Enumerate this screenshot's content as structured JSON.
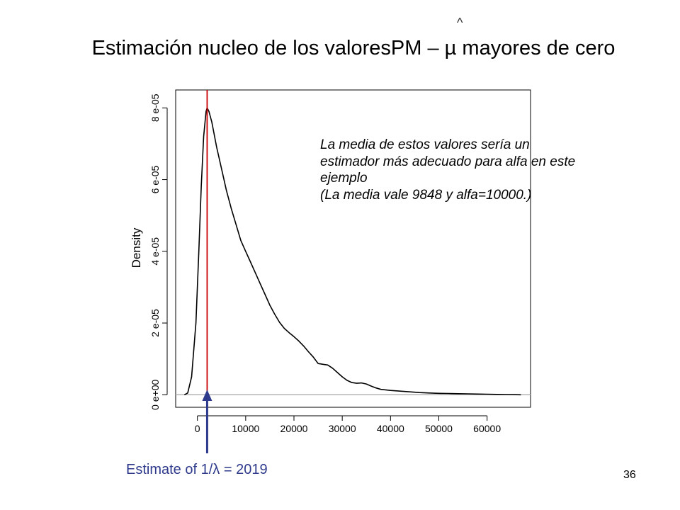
{
  "slide": {
    "hat_mark": "^",
    "title": "Estimación nucleo de los valoresPM – µ mayores de cero",
    "annotation_lines": [
      "La media de estos valores sería un",
      "estimador más adecuado para alfa en este",
      "ejemplo",
      "(La media vale 9848 y alfa=10000.)"
    ],
    "estimate_label": "Estimate of 1/λ = 2019",
    "page_number": "36"
  },
  "colors": {
    "curve": "#000000",
    "estimate_line": "#cc0000",
    "arrow": "#2e3a8c",
    "baseline": "#b3b3b3",
    "axis": "#000000"
  },
  "chart_data": {
    "type": "line",
    "title": "",
    "xlabel": "",
    "ylabel": "Density",
    "xlim": [
      -4500,
      69000
    ],
    "ylim": [
      -3.5e-06,
      8.5e-05
    ],
    "x_ticks": [
      0,
      10000,
      20000,
      30000,
      40000,
      50000,
      60000
    ],
    "x_tick_labels": [
      "0",
      "10000",
      "20000",
      "30000",
      "40000",
      "50000",
      "60000"
    ],
    "y_ticks": [
      0,
      2e-05,
      4e-05,
      6e-05,
      8e-05
    ],
    "y_tick_labels": [
      "0 e+00",
      "2 e-05",
      "4 e-05",
      "6 e-05",
      "8 e-05"
    ],
    "series": [
      {
        "x": [
          -2700,
          -2000,
          -1200,
          -300,
          300,
          800,
          1300,
          1800,
          2019,
          2400,
          3000,
          4000,
          5000,
          6000,
          7000,
          8000,
          9000,
          10000,
          11000,
          12000,
          13000,
          14000,
          15000,
          16000,
          17000,
          18000,
          19000,
          20000,
          21000,
          22000,
          23000,
          24000,
          25000,
          26000,
          27000,
          28000,
          29000,
          30000,
          31000,
          32000,
          33000,
          34000,
          35000,
          36000,
          37000,
          38000,
          40000,
          42000,
          44000,
          46000,
          48000,
          50000,
          52000,
          54000,
          56000,
          58000,
          60000,
          62000,
          64000,
          66000,
          67000
        ],
        "y": [
          0,
          5e-07,
          5e-06,
          2e-05,
          4e-05,
          5.8e-05,
          7.2e-05,
          7.9e-05,
          8e-05,
          7.9e-05,
          7.6e-05,
          6.9e-05,
          6.3e-05,
          5.7e-05,
          5.2e-05,
          4.75e-05,
          4.3e-05,
          4e-05,
          3.7e-05,
          3.4e-05,
          3.1e-05,
          2.8e-05,
          2.5e-05,
          2.25e-05,
          2.02e-05,
          1.85e-05,
          1.73e-05,
          1.62e-05,
          1.5e-05,
          1.36e-05,
          1.2e-05,
          1.05e-05,
          8.7e-06,
          8.5e-06,
          8.3e-06,
          7.4e-06,
          6.2e-06,
          5e-06,
          4e-06,
          3.4e-06,
          3.2e-06,
          3.3e-06,
          3e-06,
          2.4e-06,
          1.9e-06,
          1.5e-06,
          1.2e-06,
          1e-06,
          8e-07,
          6e-07,
          5e-07,
          4e-07,
          3.5e-07,
          3e-07,
          2.5e-07,
          2e-07,
          1.5e-07,
          1e-07,
          5e-08,
          1e-08,
          0
        ]
      }
    ],
    "vertical_line_x": 2019,
    "baseline_y": 0
  }
}
